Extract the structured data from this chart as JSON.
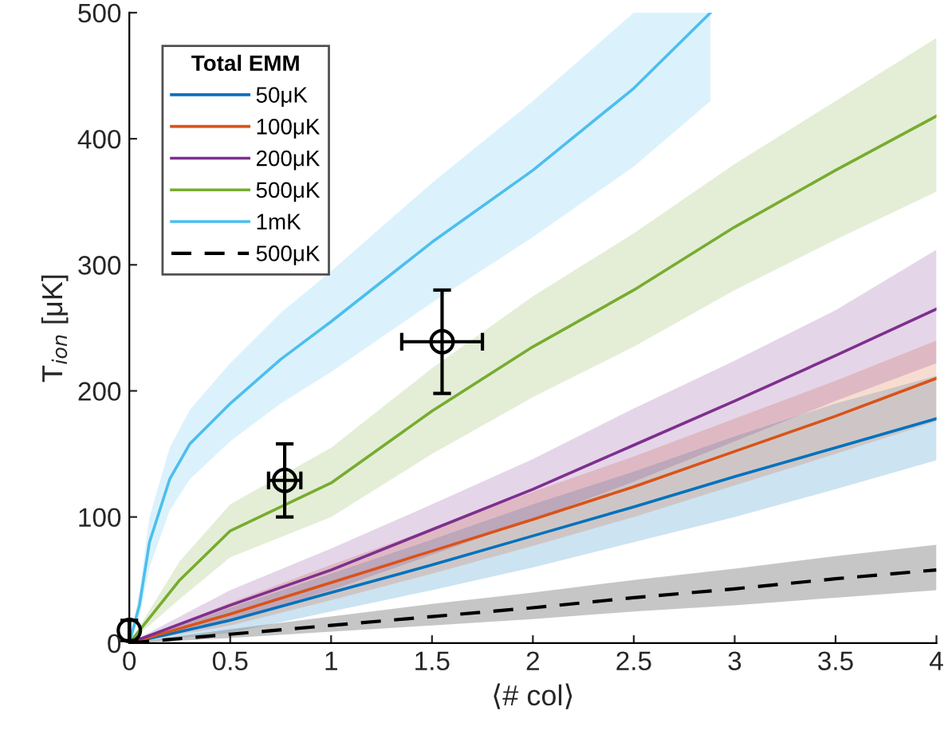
{
  "chart_data": {
    "type": "line",
    "xlabel": "⟨# col⟩",
    "ylabel": "T$_{ion}$ [μK]",
    "legend_title": "Total EMM",
    "xlim": [
      0,
      4
    ],
    "ylim": [
      0,
      500
    ],
    "xticks": [
      0,
      0.5,
      1,
      1.5,
      2,
      2.5,
      3,
      3.5,
      4
    ],
    "yticks": [
      0,
      100,
      200,
      300,
      400,
      500
    ],
    "grid": false,
    "legend": "top left",
    "line_style": "solid",
    "series": [
      {
        "name": "50μK",
        "color": "#0072bd",
        "x": [
          0,
          0.5,
          1,
          1.5,
          2,
          2.5,
          3,
          3.5,
          4
        ],
        "values": [
          0,
          18,
          40,
          62,
          85,
          108,
          132,
          155,
          178
        ],
        "lower": [
          0,
          8,
          25,
          42,
          60,
          80,
          100,
          122,
          145
        ],
        "upper": [
          0,
          28,
          55,
          82,
          110,
          136,
          164,
          190,
          212
        ]
      },
      {
        "name": "100μK",
        "color": "#d95319",
        "x": [
          0,
          0.5,
          1,
          1.5,
          2,
          2.5,
          3,
          3.5,
          4
        ],
        "values": [
          0,
          23,
          48,
          73,
          98,
          124,
          152,
          180,
          210
        ],
        "lower": [
          0,
          14,
          34,
          55,
          77,
          100,
          125,
          150,
          176
        ],
        "upper": [
          0,
          32,
          62,
          91,
          120,
          148,
          178,
          208,
          240
        ]
      },
      {
        "name": "200μK",
        "color": "#7e2f8e",
        "x": [
          0,
          0.5,
          1,
          1.5,
          2,
          2.5,
          3,
          3.5,
          4
        ],
        "values": [
          0,
          30,
          58,
          90,
          122,
          157,
          192,
          228,
          265
        ],
        "lower": [
          0,
          18,
          42,
          70,
          98,
          128,
          160,
          192,
          222
        ],
        "upper": [
          0,
          42,
          75,
          110,
          146,
          186,
          224,
          264,
          312
        ]
      },
      {
        "name": "500μK",
        "color": "#77ac30",
        "x": [
          0,
          0.25,
          0.5,
          1,
          1.5,
          2,
          2.5,
          3,
          3.5,
          4
        ],
        "values": [
          0,
          50,
          89,
          127,
          184,
          235,
          280,
          330,
          375,
          418
        ],
        "lower": [
          0,
          35,
          68,
          100,
          150,
          195,
          235,
          280,
          320,
          358
        ],
        "upper": [
          0,
          65,
          110,
          155,
          218,
          275,
          325,
          380,
          430,
          480
        ]
      },
      {
        "name": "1mK",
        "color": "#4dbeee",
        "x": [
          0,
          0.05,
          0.1,
          0.2,
          0.3,
          0.5,
          0.75,
          1,
          1.5,
          2,
          2.5,
          2.88
        ],
        "values": [
          0,
          30,
          80,
          130,
          158,
          190,
          225,
          255,
          318,
          375,
          440,
          500
        ],
        "lower": [
          0,
          20,
          60,
          105,
          130,
          160,
          190,
          215,
          270,
          322,
          378,
          430
        ],
        "upper": [
          0,
          40,
          100,
          155,
          185,
          222,
          262,
          295,
          365,
          430,
          500,
          500
        ]
      },
      {
        "name": "500μK",
        "color": "#000000",
        "line_style": "dashed",
        "x": [
          0,
          0.5,
          1,
          1.5,
          2,
          2.5,
          3,
          3.5,
          4
        ],
        "values": [
          0,
          7,
          14,
          21,
          28,
          36,
          43,
          51,
          58
        ],
        "lower": [
          0,
          4,
          9,
          14,
          19,
          25,
          30,
          36,
          42
        ],
        "upper": [
          0,
          11,
          21,
          31,
          40,
          50,
          59,
          69,
          78
        ]
      },
      {
        "type": "scatter",
        "color": "#000000",
        "marker": "circle",
        "x": [
          0,
          0.77,
          1.55
        ],
        "values": [
          10,
          129,
          239
        ],
        "errors": [
          8,
          29,
          41
        ],
        "xerrors": [
          null,
          0.08,
          0.2
        ]
      }
    ]
  }
}
